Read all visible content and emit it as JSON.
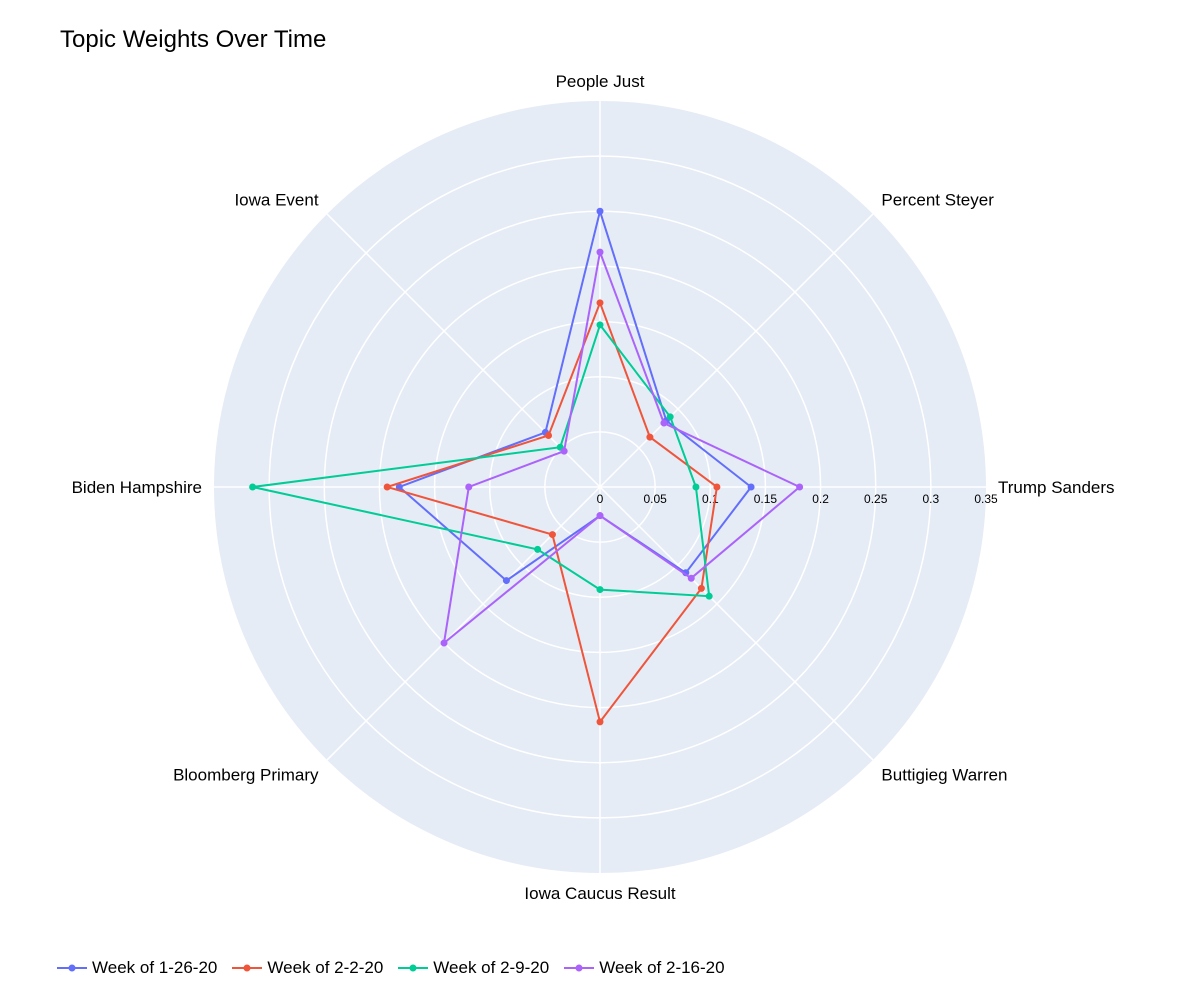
{
  "chart_data": {
    "type": "radar",
    "title": "Topic Weights Over Time",
    "axes": [
      "People Just",
      "Percent Steyer",
      "Trump Sanders",
      "Buttigieg Warren",
      "Iowa Caucus Result",
      "Bloomberg Primary",
      "Biden Hampshire",
      "Iowa Event"
    ],
    "radial_ticks": [
      0,
      0.05,
      0.1,
      0.15,
      0.2,
      0.25,
      0.3,
      0.35
    ],
    "radial_tick_labels": [
      "0",
      "0.05",
      "0.1",
      "0.15",
      "0.2",
      "0.25",
      "0.3",
      "0.35"
    ],
    "radial_range": [
      0,
      0.35
    ],
    "grid": true,
    "legend_position": "bottom-left",
    "background_color": "#e5ecf6",
    "series": [
      {
        "name": "Week of 1-26-20",
        "color": "#636efa",
        "values": [
          0.25,
          0.085,
          0.137,
          0.11,
          0.026,
          0.12,
          0.182,
          0.07
        ]
      },
      {
        "name": "Week of 2-2-20",
        "color": "#ef553b",
        "values": [
          0.167,
          0.064,
          0.106,
          0.13,
          0.213,
          0.061,
          0.193,
          0.066
        ]
      },
      {
        "name": "Week of 2-9-20",
        "color": "#00cc96",
        "values": [
          0.147,
          0.09,
          0.087,
          0.14,
          0.093,
          0.08,
          0.315,
          0.051
        ]
      },
      {
        "name": "Week of 2-16-20",
        "color": "#ab63fa",
        "values": [
          0.213,
          0.082,
          0.181,
          0.117,
          0.026,
          0.2,
          0.119,
          0.046
        ]
      }
    ]
  }
}
